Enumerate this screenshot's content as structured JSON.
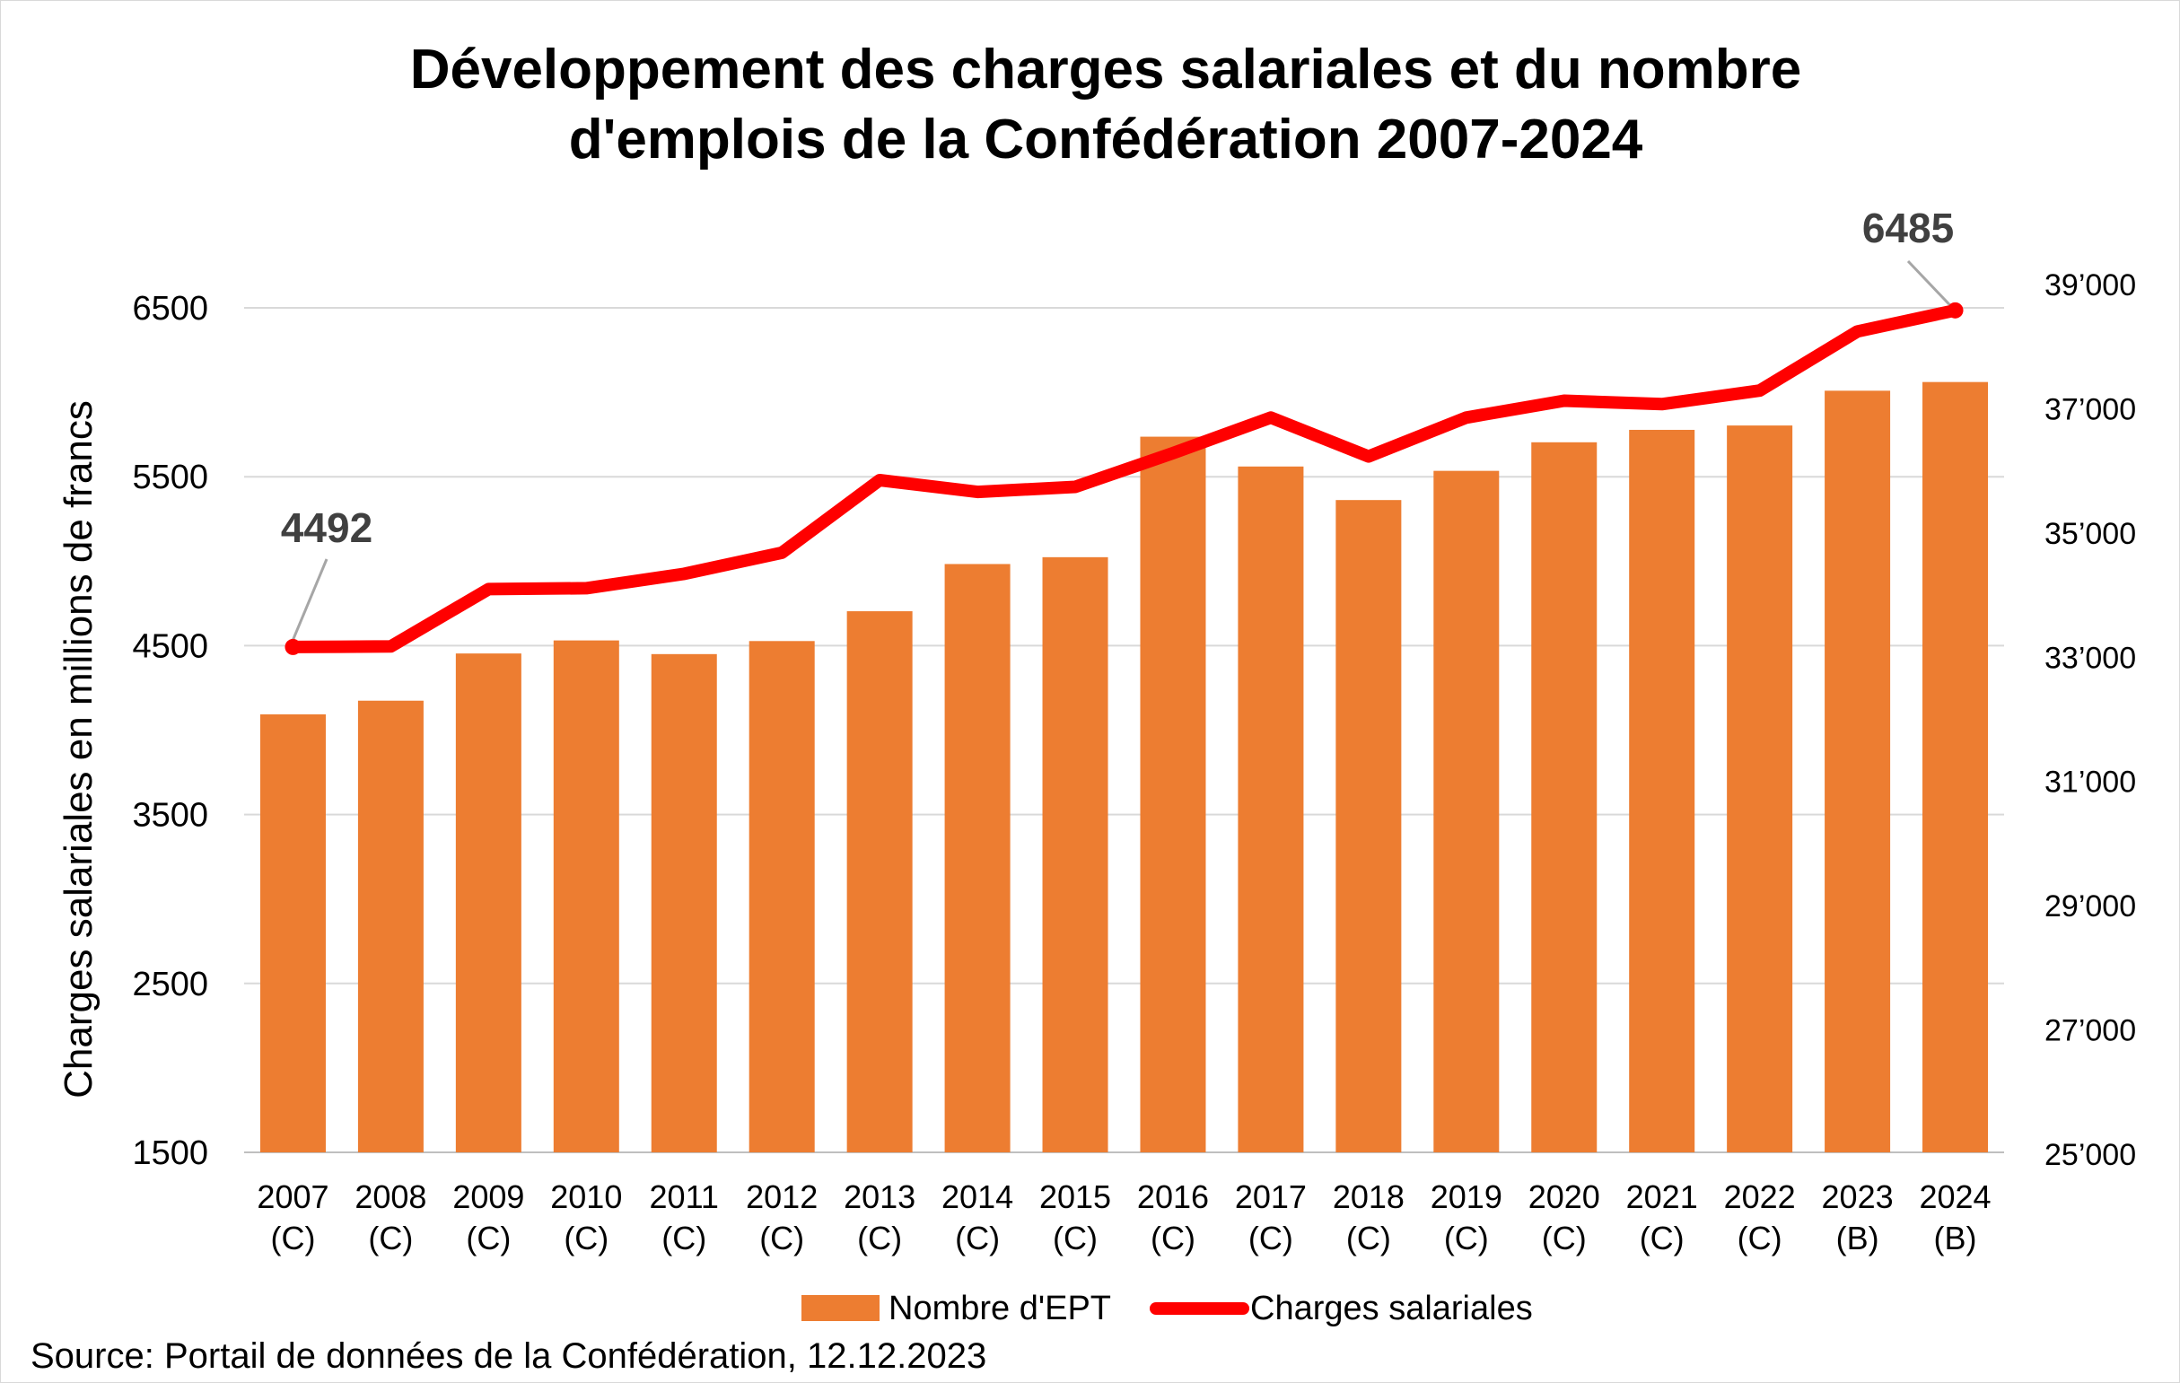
{
  "chart_data": {
    "type": "bar",
    "title_lines": [
      "Développement des charges salariales et du nombre",
      "d'emplois de la Confédération 2007-2024"
    ],
    "categories": [
      "2007",
      "2008",
      "2009",
      "2010",
      "2011",
      "2012",
      "2013",
      "2014",
      "2015",
      "2016",
      "2017",
      "2018",
      "2019",
      "2020",
      "2021",
      "2022",
      "2023",
      "2024"
    ],
    "category_sublabels": [
      "(C)",
      "(C)",
      "(C)",
      "(C)",
      "(C)",
      "(C)",
      "(C)",
      "(C)",
      "(C)",
      "(C)",
      "(C)",
      "(C)",
      "(C)",
      "(C)",
      "(C)",
      "(C)",
      "(B)",
      "(B)"
    ],
    "series": [
      {
        "name": "Nombre d'EPT",
        "type": "bar",
        "axis": "right",
        "color": "#ed7d31",
        "values": [
          32080,
          32300,
          33060,
          33270,
          33050,
          33260,
          33740,
          34500,
          34610,
          36550,
          36070,
          35530,
          36000,
          36460,
          36660,
          36730,
          37290,
          37430
        ]
      },
      {
        "name": "Charges salariales",
        "type": "line",
        "axis": "left",
        "color": "#ff0000",
        "values": [
          4492,
          4495,
          4835,
          4840,
          4925,
          5050,
          5480,
          5410,
          5440,
          5640,
          5850,
          5620,
          5850,
          5950,
          5930,
          6010,
          6360,
          6485
        ]
      }
    ],
    "ylabel": "Charges salariales en millions de francs",
    "ylim_left": [
      1500,
      6500
    ],
    "yticks_left": [
      "1500",
      "2500",
      "3500",
      "4500",
      "5500",
      "6500"
    ],
    "ylim_right": [
      25000,
      39000
    ],
    "yticks_right": [
      "25’000",
      "27’000",
      "29’000",
      "31’000",
      "33’000",
      "35’000",
      "37’000",
      "39’000"
    ],
    "annotations": [
      "4492",
      "6485"
    ],
    "legend": [
      "Nombre d'EPT",
      "Charges salariales"
    ],
    "legend_position": "bottom",
    "grid": true,
    "source": "Source: Portail de données de la Confédération, 12.12.2023"
  }
}
